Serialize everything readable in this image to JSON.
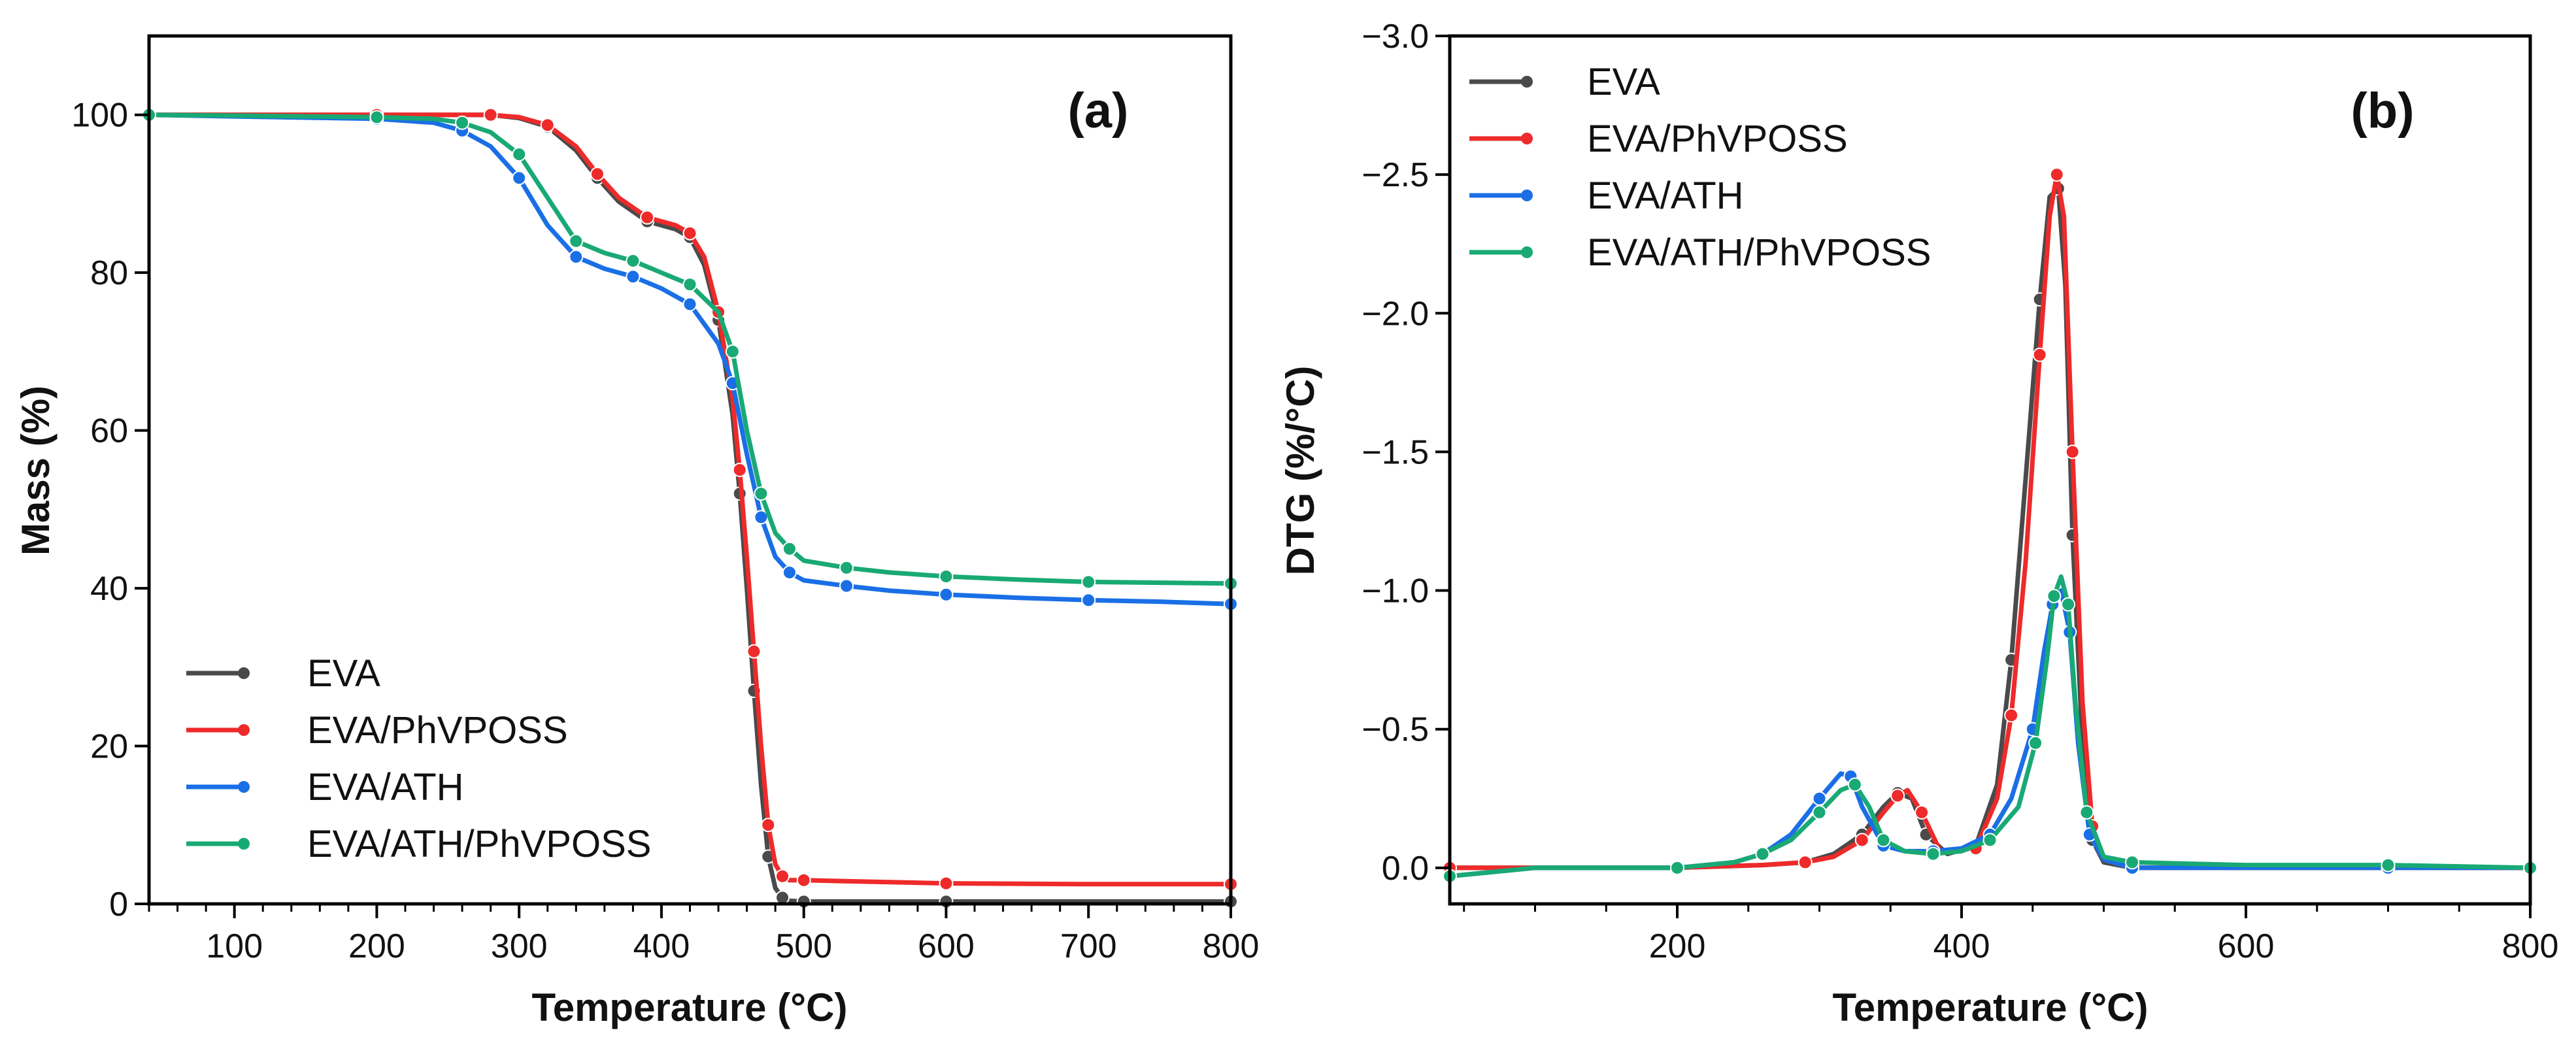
{
  "legend_labels": [
    "EVA",
    "EVA/PhVPOSS",
    "EVA/ATH",
    "EVA/ATH/PhVPOSS"
  ],
  "series_colors": {
    "EVA": "#4a4a4a",
    "EVA/PhVPOSS": "#ee2a2a",
    "EVA/ATH": "#1a6fe6",
    "EVA/ATH/PhVPOSS": "#19a974"
  },
  "chart_data": [
    {
      "type": "line",
      "panel_label": "(a)",
      "xlabel": "Temperature (°C)",
      "ylabel": "Mass (%)",
      "xlim": [
        40,
        800
      ],
      "ylim": [
        0,
        110
      ],
      "xticks": [
        100,
        200,
        300,
        400,
        500,
        600,
        700,
        800
      ],
      "yticks": [
        0,
        20,
        40,
        60,
        80,
        100
      ],
      "legend_position": "bottom-left",
      "series": [
        {
          "name": "EVA",
          "x": [
            40,
            100,
            200,
            250,
            280,
            300,
            320,
            340,
            355,
            370,
            390,
            410,
            420,
            430,
            440,
            450,
            455,
            460,
            465,
            470,
            475,
            480,
            485,
            490,
            500,
            550,
            600,
            700,
            800
          ],
          "y": [
            100,
            100,
            100,
            100,
            100,
            99.6,
            98.5,
            95.5,
            92,
            89,
            86.5,
            85.5,
            84.5,
            81,
            74,
            62,
            52,
            40,
            27,
            15,
            6,
            2,
            0.8,
            0.4,
            0.3,
            0.3,
            0.3,
            0.3,
            0.3
          ]
        },
        {
          "name": "EVA/PhVPOSS",
          "x": [
            40,
            100,
            200,
            250,
            280,
            300,
            320,
            340,
            355,
            370,
            390,
            410,
            420,
            430,
            440,
            450,
            455,
            460,
            465,
            470,
            475,
            480,
            485,
            490,
            500,
            550,
            600,
            700,
            800
          ],
          "y": [
            100,
            100,
            100,
            100,
            100,
            99.7,
            98.7,
            96,
            92.5,
            89.5,
            87,
            86,
            85,
            82,
            75,
            64,
            55,
            44,
            32,
            20,
            10,
            5,
            3.5,
            3,
            3,
            2.8,
            2.6,
            2.5,
            2.5
          ]
        },
        {
          "name": "EVA/ATH",
          "x": [
            40,
            100,
            200,
            240,
            260,
            280,
            300,
            320,
            340,
            360,
            380,
            400,
            420,
            440,
            450,
            460,
            470,
            480,
            490,
            500,
            530,
            560,
            600,
            650,
            700,
            750,
            800
          ],
          "y": [
            100,
            99.8,
            99.5,
            99,
            98,
            96,
            92,
            86,
            82,
            80.5,
            79.5,
            78,
            76,
            71,
            66,
            57,
            49,
            44,
            42,
            41,
            40.3,
            39.7,
            39.2,
            38.8,
            38.5,
            38.3,
            38
          ]
        },
        {
          "name": "EVA/ATH/PhVPOSS",
          "x": [
            40,
            100,
            200,
            240,
            260,
            280,
            300,
            320,
            340,
            360,
            380,
            400,
            420,
            440,
            450,
            460,
            470,
            480,
            490,
            500,
            530,
            560,
            600,
            650,
            700,
            750,
            800
          ],
          "y": [
            100,
            99.9,
            99.7,
            99.5,
            99,
            97.8,
            95,
            89.5,
            84,
            82.5,
            81.5,
            80,
            78.5,
            75,
            70,
            60,
            52,
            47,
            45,
            43.5,
            42.6,
            42,
            41.5,
            41.1,
            40.8,
            40.7,
            40.6
          ]
        }
      ]
    },
    {
      "type": "line",
      "panel_label": "(b)",
      "xlabel": "Temperature (°C)",
      "ylabel": "DTG (%/°C)",
      "xlim": [
        40,
        800
      ],
      "ylim": [
        0.13,
        -3.0
      ],
      "xticks": [
        200,
        400,
        600,
        800
      ],
      "yticks": [
        0.0,
        -0.5,
        -1.0,
        -1.5,
        -2.0,
        -2.5,
        -3.0
      ],
      "ytick_labels": [
        "0.0",
        "−0.5",
        "−1.0",
        "−1.5",
        "−2.0",
        "−2.5",
        "−3.0"
      ],
      "legend_position": "top-left",
      "series": [
        {
          "name": "EVA",
          "x": [
            40,
            100,
            200,
            260,
            290,
            310,
            330,
            345,
            355,
            365,
            375,
            390,
            410,
            425,
            435,
            445,
            455,
            462,
            468,
            473,
            478,
            485,
            492,
            500,
            520,
            600,
            700,
            800
          ],
          "y": [
            0,
            0,
            0,
            -0.01,
            -0.02,
            -0.05,
            -0.12,
            -0.22,
            -0.27,
            -0.25,
            -0.12,
            -0.05,
            -0.08,
            -0.3,
            -0.75,
            -1.4,
            -2.05,
            -2.42,
            -2.45,
            -2.1,
            -1.2,
            -0.45,
            -0.1,
            -0.02,
            0,
            0,
            0,
            0
          ]
        },
        {
          "name": "EVA/PhVPOSS",
          "x": [
            40,
            100,
            200,
            260,
            290,
            310,
            330,
            345,
            355,
            362,
            372,
            385,
            410,
            425,
            435,
            445,
            455,
            462,
            467,
            472,
            478,
            485,
            492,
            500,
            520,
            600,
            700,
            800
          ],
          "y": [
            0,
            0,
            0,
            -0.01,
            -0.02,
            -0.04,
            -0.1,
            -0.2,
            -0.26,
            -0.28,
            -0.2,
            -0.06,
            -0.07,
            -0.25,
            -0.55,
            -1.1,
            -1.85,
            -2.35,
            -2.5,
            -2.35,
            -1.5,
            -0.6,
            -0.15,
            -0.03,
            0,
            0,
            0,
            0
          ]
        },
        {
          "name": "EVA/ATH",
          "x": [
            40,
            100,
            200,
            240,
            260,
            280,
            300,
            315,
            322,
            330,
            345,
            360,
            380,
            400,
            420,
            435,
            450,
            458,
            464,
            470,
            476,
            482,
            490,
            500,
            520,
            600,
            700,
            800
          ],
          "y": [
            0.03,
            0,
            0,
            -0.02,
            -0.05,
            -0.12,
            -0.25,
            -0.34,
            -0.33,
            -0.22,
            -0.08,
            -0.06,
            -0.06,
            -0.07,
            -0.12,
            -0.25,
            -0.5,
            -0.78,
            -0.95,
            -1.0,
            -0.85,
            -0.45,
            -0.12,
            -0.03,
            0,
            0,
            0,
            0
          ]
        },
        {
          "name": "EVA/ATH/PhVPOSS",
          "x": [
            40,
            100,
            200,
            240,
            260,
            280,
            300,
            315,
            325,
            335,
            345,
            360,
            380,
            400,
            420,
            440,
            452,
            460,
            465,
            470,
            475,
            480,
            488,
            500,
            520,
            600,
            700,
            800
          ],
          "y": [
            0.03,
            0,
            0,
            -0.02,
            -0.05,
            -0.1,
            -0.2,
            -0.28,
            -0.3,
            -0.22,
            -0.1,
            -0.06,
            -0.05,
            -0.06,
            -0.1,
            -0.22,
            -0.45,
            -0.75,
            -0.98,
            -1.05,
            -0.95,
            -0.6,
            -0.2,
            -0.04,
            -0.02,
            -0.01,
            -0.01,
            0
          ]
        }
      ]
    }
  ]
}
